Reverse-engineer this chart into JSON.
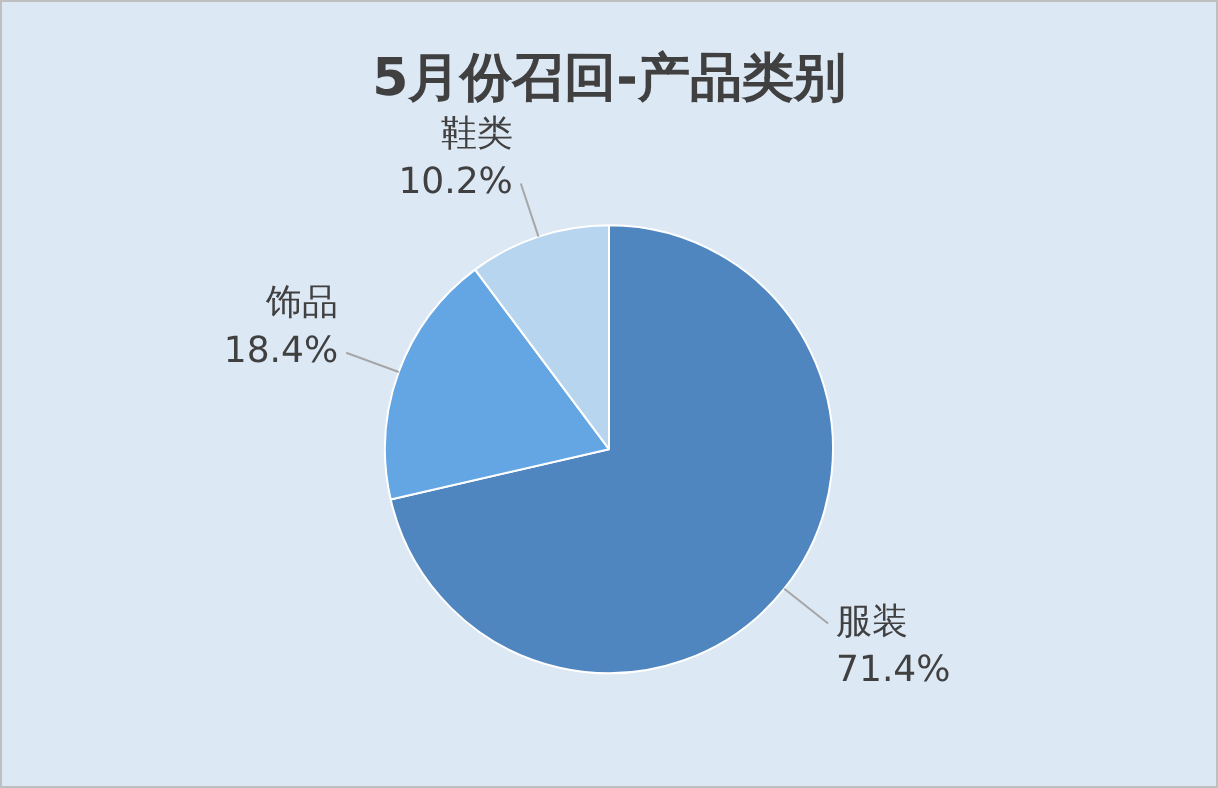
{
  "chart_data": {
    "type": "pie",
    "title": "5月份召回-产品类别",
    "categories": [
      "服装",
      "饰品",
      "鞋类"
    ],
    "values": [
      71.4,
      18.4,
      10.2
    ],
    "value_labels": [
      "71.4%",
      "18.4%",
      "10.2%"
    ],
    "colors": [
      "#4f86c0",
      "#63a6e3",
      "#b8d5f0"
    ],
    "legend": false
  }
}
